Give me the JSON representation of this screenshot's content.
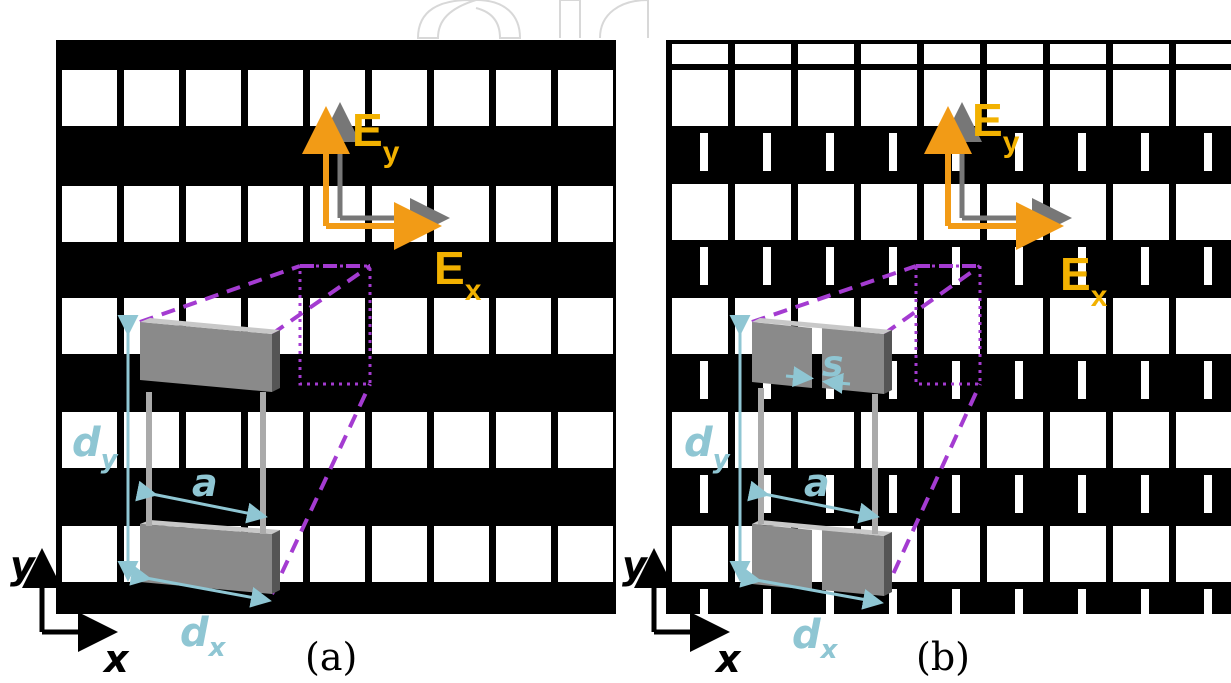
{
  "watermark": {
    "description": "faint publisher logo outline at top"
  },
  "colors": {
    "field_arrow": "#f29b16",
    "field_label": "#f2b100",
    "dimension": "#8fc6d3",
    "dashed_outline": "#a43bd1",
    "unit_cell_fill": "#8a8a8a"
  },
  "panel_a": {
    "caption": "(a)",
    "field_y": {
      "base": "E",
      "sub": "y"
    },
    "field_x": {
      "base": "E",
      "sub": "x"
    },
    "dim_dy": {
      "base": "d",
      "sub": "y"
    },
    "dim_dx": {
      "base": "d",
      "sub": "x"
    },
    "dim_a": "a",
    "axis_y": "y",
    "axis_x": "x"
  },
  "panel_b": {
    "caption": "(b)",
    "field_y": {
      "base": "E",
      "sub": "y"
    },
    "field_x": {
      "base": "E",
      "sub": "x"
    },
    "dim_dy": {
      "base": "d",
      "sub": "y"
    },
    "dim_dx": {
      "base": "d",
      "sub": "x"
    },
    "dim_a": "a",
    "dim_s": "s",
    "axis_y": "y",
    "axis_x": "x"
  }
}
